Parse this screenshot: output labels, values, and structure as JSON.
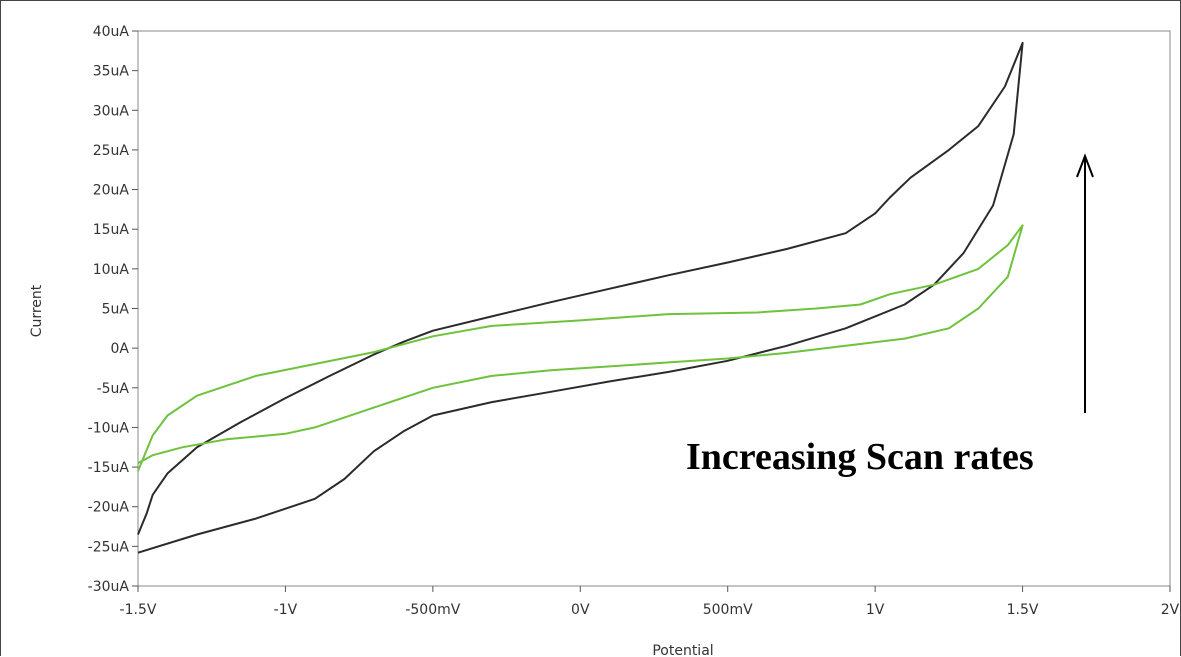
{
  "chart_data": {
    "type": "line",
    "xlabel": "Potential",
    "ylabel": "Current",
    "xlim": [
      -1.5,
      2.0
    ],
    "ylim": [
      -30,
      40
    ],
    "grid": false,
    "legend": "none",
    "xticks": [
      {
        "value": -1.5,
        "label": "-1.5V"
      },
      {
        "value": -1.0,
        "label": "-1V"
      },
      {
        "value": -0.5,
        "label": "-500mV"
      },
      {
        "value": 0.0,
        "label": "0V"
      },
      {
        "value": 0.5,
        "label": "500mV"
      },
      {
        "value": 1.0,
        "label": "1V"
      },
      {
        "value": 1.5,
        "label": "1.5V"
      },
      {
        "value": 2.0,
        "label": "2V"
      }
    ],
    "yticks": [
      {
        "value": 40,
        "label": "40uA"
      },
      {
        "value": 35,
        "label": "35uA"
      },
      {
        "value": 30,
        "label": "30uA"
      },
      {
        "value": 25,
        "label": "25uA"
      },
      {
        "value": 20,
        "label": "20uA"
      },
      {
        "value": 15,
        "label": "15uA"
      },
      {
        "value": 10,
        "label": "10uA"
      },
      {
        "value": 5,
        "label": "5uA"
      },
      {
        "value": 0,
        "label": "0A"
      },
      {
        "value": -5,
        "label": "-5uA"
      },
      {
        "value": -10,
        "label": "-10uA"
      },
      {
        "value": -15,
        "label": "-15uA"
      },
      {
        "value": -20,
        "label": "-20uA"
      },
      {
        "value": -25,
        "label": "-25uA"
      },
      {
        "value": -30,
        "label": "-30uA"
      }
    ],
    "series": [
      {
        "color": "#2b2b2b",
        "points": [
          [
            -1.5,
            -25.8
          ],
          [
            -1.3,
            -23.5
          ],
          [
            -1.1,
            -21.5
          ],
          [
            -0.9,
            -19.0
          ],
          [
            -0.8,
            -16.5
          ],
          [
            -0.7,
            -13.0
          ],
          [
            -0.6,
            -10.5
          ],
          [
            -0.5,
            -8.5
          ],
          [
            -0.3,
            -6.8
          ],
          [
            -0.1,
            -5.5
          ],
          [
            0.1,
            -4.2
          ],
          [
            0.3,
            -3.0
          ],
          [
            0.5,
            -1.6
          ],
          [
            0.7,
            0.3
          ],
          [
            0.9,
            2.5
          ],
          [
            1.1,
            5.5
          ],
          [
            1.2,
            8.0
          ],
          [
            1.3,
            12.0
          ],
          [
            1.4,
            18.0
          ],
          [
            1.47,
            27.0
          ],
          [
            1.5,
            38.5
          ],
          [
            1.44,
            33.0
          ],
          [
            1.35,
            28.0
          ],
          [
            1.25,
            25.0
          ],
          [
            1.12,
            21.5
          ],
          [
            1.05,
            19.0
          ],
          [
            1.0,
            17.0
          ],
          [
            0.9,
            14.5
          ],
          [
            0.7,
            12.5
          ],
          [
            0.5,
            10.8
          ],
          [
            0.3,
            9.2
          ],
          [
            0.1,
            7.5
          ],
          [
            -0.1,
            5.8
          ],
          [
            -0.3,
            4.0
          ],
          [
            -0.5,
            2.2
          ],
          [
            -0.6,
            0.8
          ],
          [
            -0.7,
            -0.8
          ],
          [
            -0.85,
            -3.5
          ],
          [
            -1.0,
            -6.3
          ],
          [
            -1.15,
            -9.3
          ],
          [
            -1.3,
            -12.5
          ],
          [
            -1.4,
            -15.8
          ],
          [
            -1.45,
            -18.5
          ],
          [
            -1.47,
            -20.8
          ],
          [
            -1.5,
            -23.5
          ]
        ]
      },
      {
        "color": "#6ec23c",
        "points": [
          [
            -1.5,
            -14.5
          ],
          [
            -1.45,
            -13.5
          ],
          [
            -1.35,
            -12.5
          ],
          [
            -1.2,
            -11.5
          ],
          [
            -1.0,
            -10.8
          ],
          [
            -0.9,
            -10.0
          ],
          [
            -0.7,
            -7.5
          ],
          [
            -0.5,
            -5.0
          ],
          [
            -0.3,
            -3.5
          ],
          [
            -0.1,
            -2.8
          ],
          [
            0.1,
            -2.3
          ],
          [
            0.3,
            -1.8
          ],
          [
            0.5,
            -1.3
          ],
          [
            0.7,
            -0.6
          ],
          [
            0.9,
            0.3
          ],
          [
            1.1,
            1.2
          ],
          [
            1.25,
            2.5
          ],
          [
            1.35,
            5.0
          ],
          [
            1.45,
            9.0
          ],
          [
            1.5,
            15.5
          ],
          [
            1.45,
            13.0
          ],
          [
            1.35,
            10.0
          ],
          [
            1.2,
            8.0
          ],
          [
            1.05,
            6.8
          ],
          [
            0.95,
            5.5
          ],
          [
            0.8,
            5.0
          ],
          [
            0.6,
            4.5
          ],
          [
            0.3,
            4.3
          ],
          [
            0.0,
            3.5
          ],
          [
            -0.3,
            2.8
          ],
          [
            -0.5,
            1.5
          ],
          [
            -0.7,
            -0.5
          ],
          [
            -0.9,
            -2.0
          ],
          [
            -1.1,
            -3.5
          ],
          [
            -1.3,
            -6.0
          ],
          [
            -1.4,
            -8.5
          ],
          [
            -1.45,
            -11.0
          ],
          [
            -1.5,
            -15.5
          ]
        ]
      }
    ],
    "annotations": [
      {
        "text": "Increasing Scan rates"
      }
    ]
  }
}
